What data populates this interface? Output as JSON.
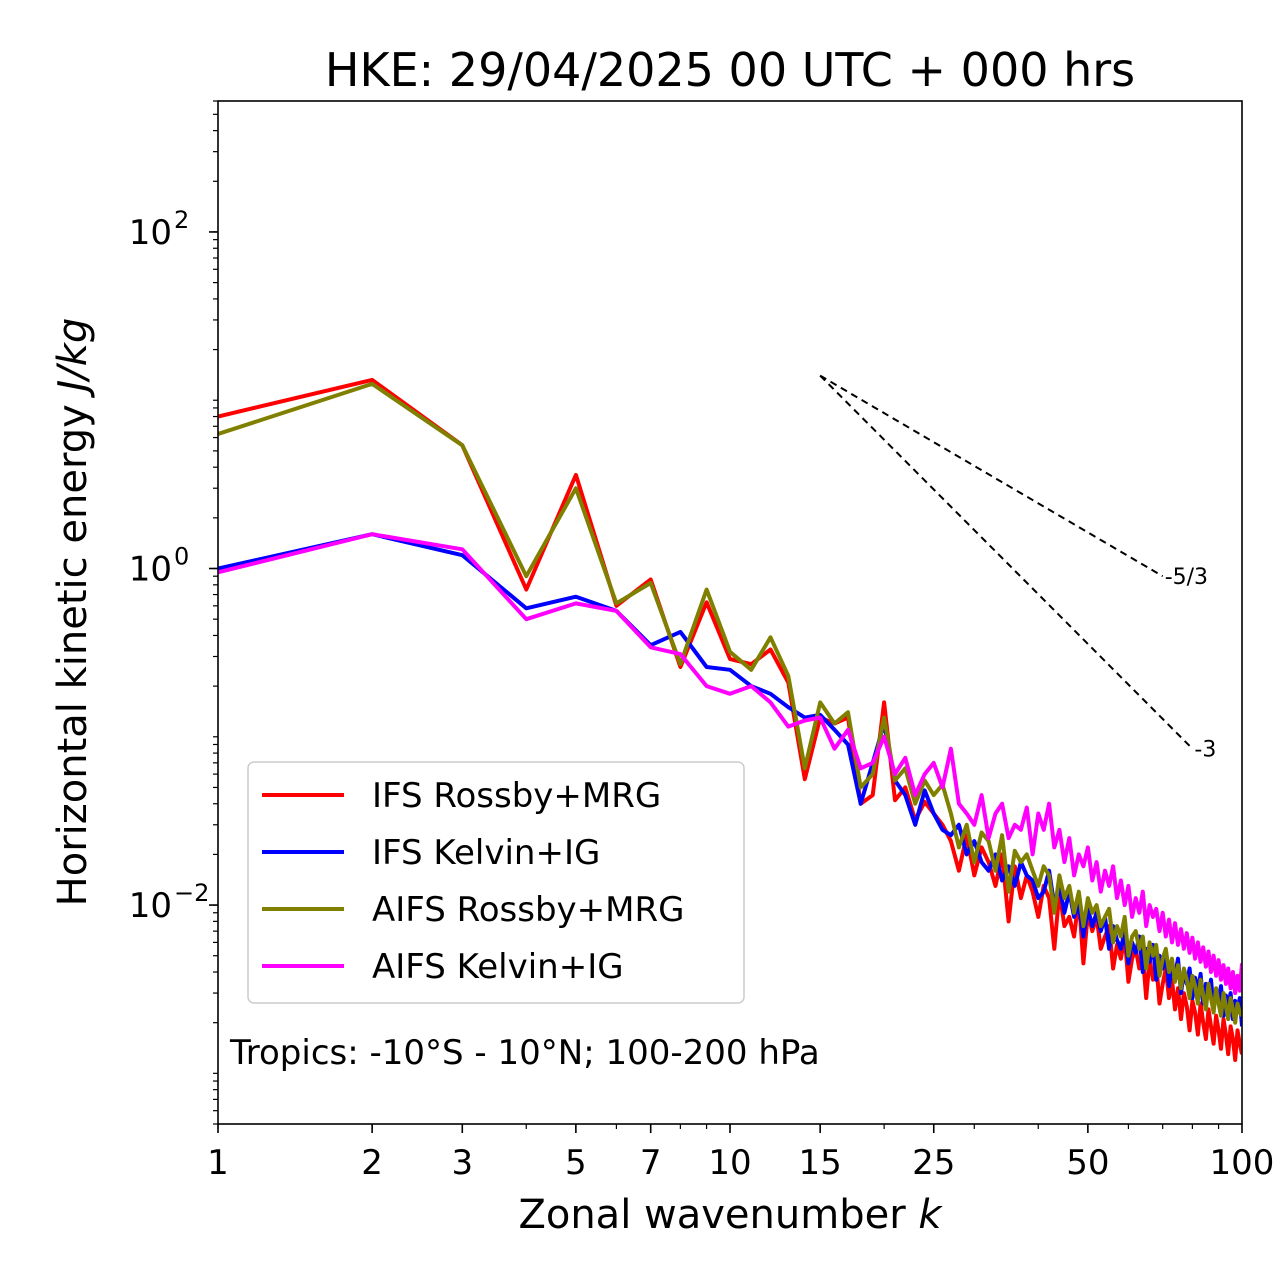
{
  "chart_data": {
    "type": "line",
    "title": "HKE: 29/04/2025 00 UTC + 000 hrs",
    "xlabel": "Zonal wavenumber k",
    "xlabel_main": "Zonal wavenumber ",
    "xlabel_var": "k",
    "ylabel": "Horizontal kinetic energy J/kg",
    "ylabel_main": "Horizontal kinetic energy ",
    "ylabel_unit": "J/kg",
    "x_scale": "log",
    "y_scale": "log",
    "xlim": [
      1,
      100
    ],
    "ylim": [
      0.0005,
      600
    ],
    "x_ticks": [
      1,
      2,
      3,
      5,
      7,
      10,
      15,
      25,
      50,
      100
    ],
    "x_tick_labels": [
      "1",
      "2",
      "3",
      "5",
      "7",
      "10",
      "15",
      "25",
      "50",
      "100"
    ],
    "y_ticks": [
      0.01,
      1,
      100
    ],
    "y_tick_bases": [
      "10",
      "10",
      "10"
    ],
    "y_tick_exponents": [
      "−2",
      "0",
      "2"
    ],
    "annotation": "Tropics: -10°S - 10°N; 100-200 hPa",
    "reference_lines": [
      {
        "slope_label": "-5/3",
        "x": [
          15,
          70
        ],
        "y": [
          14.0,
          0.9
        ]
      },
      {
        "slope_label": "-3",
        "x": [
          15,
          80
        ],
        "y": [
          14.0,
          0.085
        ]
      }
    ],
    "legend_position": "lower-left",
    "series": [
      {
        "name": "IFS Rossby+MRG",
        "color": "#ff0000",
        "x": [
          1,
          2,
          3,
          4,
          5,
          6,
          7,
          8,
          9,
          10,
          11,
          12,
          13,
          14,
          15,
          16,
          17,
          18,
          19,
          20,
          21,
          22,
          23,
          24,
          25,
          26,
          27,
          28,
          29,
          30,
          31,
          32,
          33,
          34,
          35,
          36,
          37,
          38,
          39,
          40,
          41,
          42,
          43,
          44,
          45,
          46,
          47,
          48,
          49,
          50,
          51,
          52,
          53,
          54,
          55,
          56,
          57,
          58,
          59,
          60,
          61,
          62,
          63,
          64,
          65,
          66,
          67,
          68,
          69,
          70,
          71,
          72,
          73,
          74,
          75,
          76,
          77,
          78,
          79,
          80,
          81,
          82,
          83,
          84,
          85,
          86,
          87,
          88,
          89,
          90,
          91,
          92,
          93,
          94,
          95,
          96,
          97,
          98,
          99,
          100
        ],
        "y": [
          8.0,
          13.2,
          5.4,
          0.75,
          3.6,
          0.6,
          0.86,
          0.26,
          0.63,
          0.29,
          0.27,
          0.33,
          0.21,
          0.056,
          0.13,
          0.12,
          0.13,
          0.04,
          0.045,
          0.16,
          0.042,
          0.05,
          0.032,
          0.041,
          0.035,
          0.03,
          0.024,
          0.016,
          0.026,
          0.015,
          0.022,
          0.018,
          0.013,
          0.02,
          0.008,
          0.017,
          0.011,
          0.015,
          0.012,
          0.0085,
          0.013,
          0.011,
          0.0055,
          0.012,
          0.0075,
          0.0085,
          0.0065,
          0.011,
          0.0045,
          0.009,
          0.007,
          0.0085,
          0.0055,
          0.0065,
          0.0075,
          0.0042,
          0.0058,
          0.0048,
          0.0065,
          0.0035,
          0.0048,
          0.0055,
          0.0042,
          0.005,
          0.0028,
          0.0048,
          0.0036,
          0.0045,
          0.0026,
          0.0034,
          0.0042,
          0.0028,
          0.0036,
          0.0024,
          0.0032,
          0.0021,
          0.003,
          0.0025,
          0.0018,
          0.0027,
          0.0023,
          0.0017,
          0.0026,
          0.002,
          0.0016,
          0.0024,
          0.0019,
          0.0015,
          0.0022,
          0.0018,
          0.0014,
          0.0021,
          0.0017,
          0.0013,
          0.0019,
          0.0016,
          0.0012,
          0.0018,
          0.0015,
          0.0013
        ]
      },
      {
        "name": "IFS Kelvin+IG",
        "color": "#0000ff",
        "x": [
          1,
          2,
          3,
          4,
          5,
          6,
          7,
          8,
          9,
          10,
          11,
          12,
          13,
          14,
          15,
          16,
          17,
          18,
          19,
          20,
          21,
          22,
          23,
          24,
          25,
          26,
          27,
          28,
          29,
          30,
          31,
          32,
          33,
          34,
          35,
          36,
          37,
          38,
          39,
          40,
          41,
          42,
          43,
          44,
          45,
          46,
          47,
          48,
          49,
          50,
          51,
          52,
          53,
          54,
          55,
          56,
          57,
          58,
          59,
          60,
          61,
          62,
          63,
          64,
          65,
          66,
          67,
          68,
          69,
          70,
          71,
          72,
          73,
          74,
          75,
          76,
          77,
          78,
          79,
          80,
          81,
          82,
          83,
          84,
          85,
          86,
          87,
          88,
          89,
          90,
          91,
          92,
          93,
          94,
          95,
          96,
          97,
          98,
          99,
          100
        ],
        "y": [
          1.0,
          1.6,
          1.2,
          0.58,
          0.68,
          0.56,
          0.35,
          0.42,
          0.26,
          0.25,
          0.2,
          0.18,
          0.15,
          0.13,
          0.135,
          0.11,
          0.09,
          0.04,
          0.07,
          0.12,
          0.055,
          0.045,
          0.03,
          0.048,
          0.035,
          0.028,
          0.026,
          0.03,
          0.02,
          0.024,
          0.018,
          0.016,
          0.02,
          0.014,
          0.017,
          0.013,
          0.018,
          0.015,
          0.014,
          0.011,
          0.012,
          0.016,
          0.01,
          0.013,
          0.009,
          0.012,
          0.0085,
          0.01,
          0.0065,
          0.0095,
          0.0075,
          0.009,
          0.007,
          0.0085,
          0.0055,
          0.0075,
          0.0062,
          0.0055,
          0.007,
          0.0045,
          0.006,
          0.0052,
          0.0065,
          0.004,
          0.0055,
          0.0046,
          0.0058,
          0.0036,
          0.005,
          0.0042,
          0.0052,
          0.0033,
          0.0044,
          0.0038,
          0.0048,
          0.003,
          0.004,
          0.0034,
          0.0042,
          0.0028,
          0.0037,
          0.0031,
          0.0039,
          0.0026,
          0.0034,
          0.0029,
          0.0036,
          0.0024,
          0.0031,
          0.0027,
          0.0033,
          0.0022,
          0.0029,
          0.0025,
          0.003,
          0.0021,
          0.0027,
          0.0023,
          0.0028,
          0.0019
        ]
      },
      {
        "name": "AIFS Rossby+MRG",
        "color": "#808000",
        "x": [
          1,
          2,
          3,
          4,
          5,
          6,
          7,
          8,
          9,
          10,
          11,
          12,
          13,
          14,
          15,
          16,
          17,
          18,
          19,
          20,
          21,
          22,
          23,
          24,
          25,
          26,
          27,
          28,
          29,
          30,
          31,
          32,
          33,
          34,
          35,
          36,
          37,
          38,
          39,
          40,
          41,
          42,
          43,
          44,
          45,
          46,
          47,
          48,
          49,
          50,
          51,
          52,
          53,
          54,
          55,
          56,
          57,
          58,
          59,
          60,
          61,
          62,
          63,
          64,
          65,
          66,
          67,
          68,
          69,
          70,
          71,
          72,
          73,
          74,
          75,
          76,
          77,
          78,
          79,
          80,
          81,
          82,
          83,
          84,
          85,
          86,
          87,
          88,
          89,
          90,
          91,
          92,
          93,
          94,
          95,
          96,
          97,
          98,
          99,
          100
        ],
        "y": [
          6.3,
          12.5,
          5.4,
          0.9,
          3.0,
          0.62,
          0.82,
          0.27,
          0.75,
          0.32,
          0.25,
          0.39,
          0.23,
          0.065,
          0.16,
          0.12,
          0.14,
          0.05,
          0.06,
          0.13,
          0.055,
          0.065,
          0.04,
          0.055,
          0.045,
          0.052,
          0.035,
          0.022,
          0.03,
          0.018,
          0.027,
          0.024,
          0.016,
          0.026,
          0.012,
          0.021,
          0.018,
          0.02,
          0.016,
          0.013,
          0.017,
          0.015,
          0.009,
          0.015,
          0.011,
          0.013,
          0.009,
          0.012,
          0.0075,
          0.011,
          0.009,
          0.01,
          0.0075,
          0.0085,
          0.0095,
          0.006,
          0.0075,
          0.0065,
          0.0085,
          0.005,
          0.0065,
          0.007,
          0.0055,
          0.0065,
          0.0042,
          0.006,
          0.005,
          0.0058,
          0.0038,
          0.0048,
          0.0055,
          0.004,
          0.0048,
          0.0035,
          0.0044,
          0.0032,
          0.0042,
          0.0036,
          0.0028,
          0.0038,
          0.0033,
          0.0026,
          0.0036,
          0.0029,
          0.0024,
          0.0034,
          0.0028,
          0.0023,
          0.0032,
          0.0026,
          0.0022,
          0.003,
          0.0025,
          0.0021,
          0.0028,
          0.0024,
          0.002,
          0.0026,
          0.0023,
          0.0022
        ]
      },
      {
        "name": "AIFS Kelvin+IG",
        "color": "#ff00ff",
        "x": [
          1,
          2,
          3,
          4,
          5,
          6,
          7,
          8,
          9,
          10,
          11,
          12,
          13,
          14,
          15,
          16,
          17,
          18,
          19,
          20,
          21,
          22,
          23,
          24,
          25,
          26,
          27,
          28,
          29,
          30,
          31,
          32,
          33,
          34,
          35,
          36,
          37,
          38,
          39,
          40,
          41,
          42,
          43,
          44,
          45,
          46,
          47,
          48,
          49,
          50,
          51,
          52,
          53,
          54,
          55,
          56,
          57,
          58,
          59,
          60,
          61,
          62,
          63,
          64,
          65,
          66,
          67,
          68,
          69,
          70,
          71,
          72,
          73,
          74,
          75,
          76,
          77,
          78,
          79,
          80,
          81,
          82,
          83,
          84,
          85,
          86,
          87,
          88,
          89,
          90,
          91,
          92,
          93,
          94,
          95,
          96,
          97,
          98,
          99,
          100
        ],
        "y": [
          0.95,
          1.6,
          1.3,
          0.5,
          0.62,
          0.56,
          0.34,
          0.31,
          0.2,
          0.18,
          0.2,
          0.16,
          0.115,
          0.125,
          0.13,
          0.085,
          0.11,
          0.065,
          0.07,
          0.1,
          0.06,
          0.075,
          0.045,
          0.06,
          0.07,
          0.05,
          0.085,
          0.04,
          0.035,
          0.03,
          0.045,
          0.025,
          0.035,
          0.04,
          0.025,
          0.03,
          0.028,
          0.038,
          0.02,
          0.035,
          0.028,
          0.04,
          0.022,
          0.028,
          0.018,
          0.025,
          0.015,
          0.02,
          0.017,
          0.022,
          0.014,
          0.018,
          0.012,
          0.016,
          0.013,
          0.017,
          0.011,
          0.014,
          0.01,
          0.013,
          0.0085,
          0.011,
          0.009,
          0.012,
          0.0075,
          0.01,
          0.0085,
          0.0095,
          0.007,
          0.009,
          0.0065,
          0.0082,
          0.006,
          0.0078,
          0.0058,
          0.0072,
          0.0055,
          0.0068,
          0.0052,
          0.0064,
          0.0048,
          0.006,
          0.0046,
          0.0056,
          0.0043,
          0.0053,
          0.004,
          0.005,
          0.0038,
          0.0047,
          0.0036,
          0.0044,
          0.0034,
          0.0042,
          0.0032,
          0.004,
          0.003,
          0.0038,
          0.0031,
          0.0045
        ]
      }
    ]
  }
}
